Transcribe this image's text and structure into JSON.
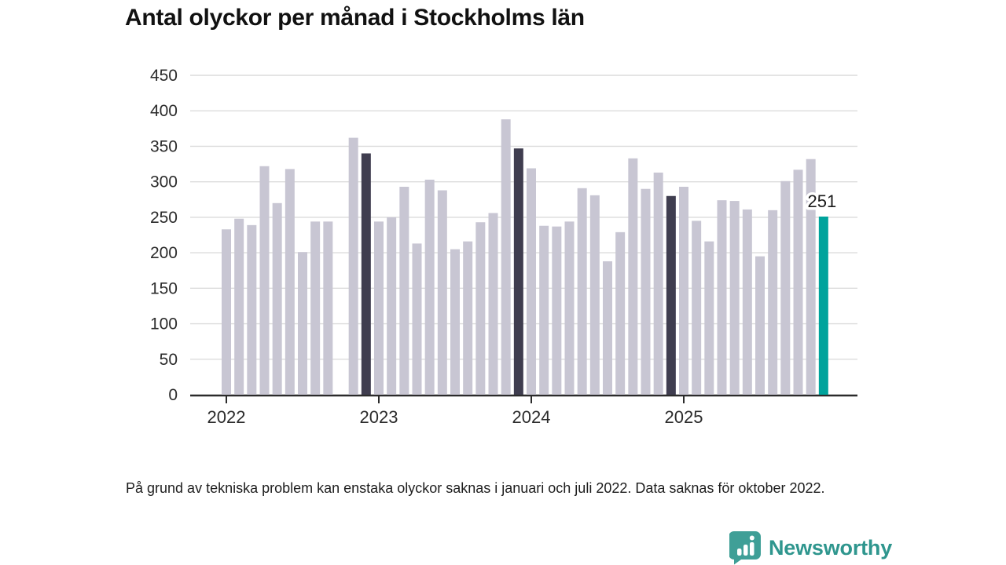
{
  "page": {
    "title": "Antal olyckor per månad i Stockholms län",
    "footnote": "På grund av tekniska problem kan enstaka olyckor saknas i januari och juli 2022. Data saknas för oktober 2022.",
    "brand": {
      "name": "Newsworthy",
      "icon": "newsworthy-speech-bubble-bar-chart-icon",
      "text_color": "#2f968e",
      "icon_color": "#3f9f97"
    }
  },
  "chart_data": {
    "type": "bar",
    "title": "Antal olyckor per månad i Stockholms län",
    "x_unit": "month",
    "categories": [
      "2022-01",
      "2022-02",
      "2022-03",
      "2022-04",
      "2022-05",
      "2022-06",
      "2022-07",
      "2022-08",
      "2022-09",
      "2022-10",
      "2022-11",
      "2022-12",
      "2023-01",
      "2023-02",
      "2023-03",
      "2023-04",
      "2023-05",
      "2023-06",
      "2023-07",
      "2023-08",
      "2023-09",
      "2023-10",
      "2023-11",
      "2023-12",
      "2024-01",
      "2024-02",
      "2024-03",
      "2024-04",
      "2024-05",
      "2024-06",
      "2024-07",
      "2024-08",
      "2024-09",
      "2024-10",
      "2024-11",
      "2024-12",
      "2025-01",
      "2025-02",
      "2025-03",
      "2025-04",
      "2025-05",
      "2025-06",
      "2025-07",
      "2025-08",
      "2025-09",
      "2025-10",
      "2025-11",
      "2025-12"
    ],
    "values": [
      233,
      248,
      239,
      322,
      270,
      318,
      201,
      244,
      244,
      null,
      362,
      340,
      244,
      250,
      293,
      213,
      303,
      288,
      205,
      216,
      243,
      256,
      388,
      347,
      319,
      238,
      237,
      244,
      291,
      281,
      188,
      229,
      333,
      290,
      313,
      280,
      293,
      245,
      216,
      274,
      273,
      261,
      195,
      260,
      301,
      317,
      332,
      251
    ],
    "missing_categories": [
      "2022-10"
    ],
    "highlight_dark_indices": [
      11,
      23,
      35
    ],
    "highlight_accent_index": 47,
    "annotation": {
      "index": 47,
      "label": "251"
    },
    "ylim": [
      0,
      450
    ],
    "yticks": [
      0,
      50,
      100,
      150,
      200,
      250,
      300,
      350,
      400,
      450
    ],
    "xticks": [
      {
        "label": "2022",
        "index": 0
      },
      {
        "label": "2023",
        "index": 12
      },
      {
        "label": "2024",
        "index": 24
      },
      {
        "label": "2025",
        "index": 36
      }
    ],
    "grid": true,
    "legend": "none",
    "colors": {
      "bar": "#c8c6d3",
      "bar_dark": "#3f3d4f",
      "bar_accent": "#00a39c",
      "gridline": "#dcdcdc",
      "axis": "#2b2b2b",
      "tick_label": "#2b2b2b"
    }
  }
}
